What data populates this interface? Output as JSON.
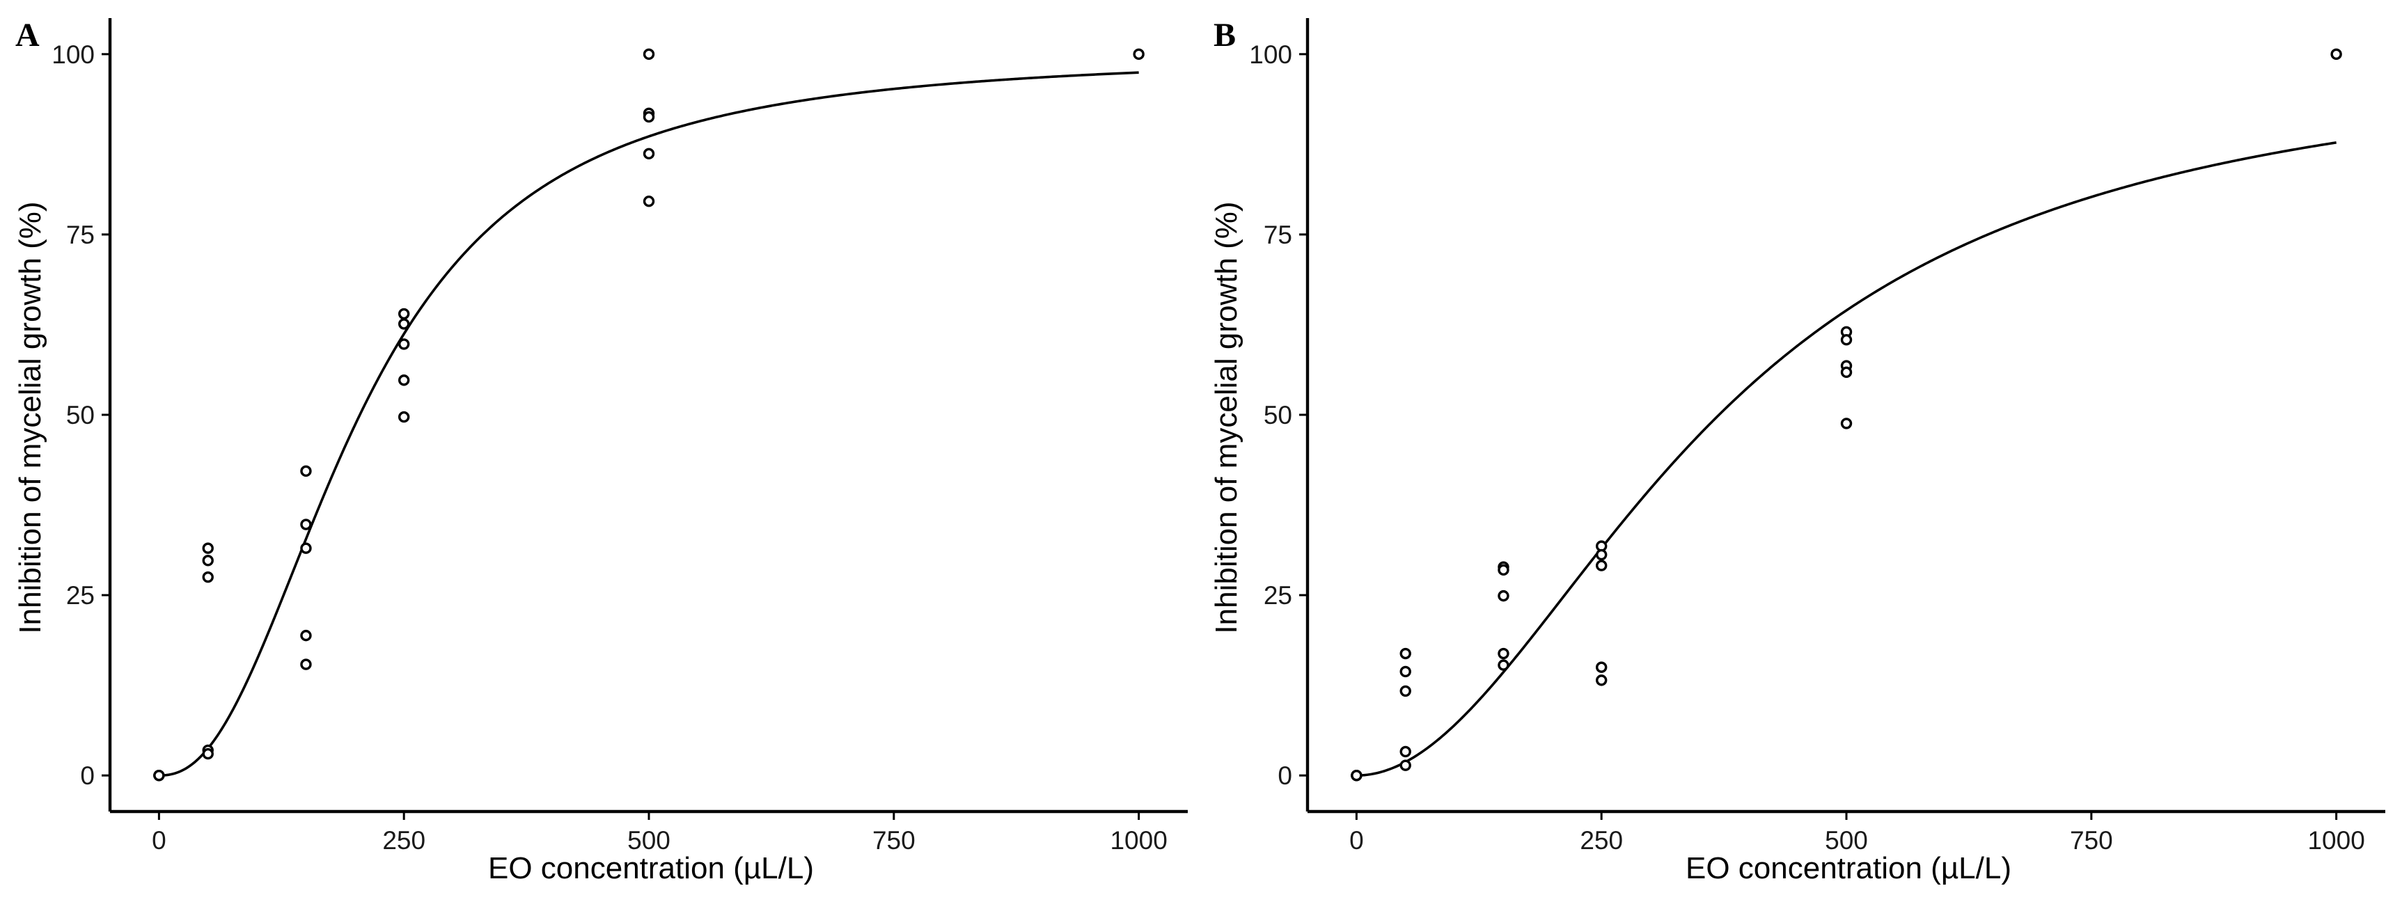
{
  "chart_data": [
    {
      "type": "scatter",
      "panel_label": "A",
      "xlabel": "EO concentration (µL/L)",
      "ylabel": "Inhibition of mycelial growth (%)",
      "xlim": [
        -50,
        1050
      ],
      "ylim": [
        -5,
        105
      ],
      "xticks": [
        0,
        250,
        500,
        750,
        1000
      ],
      "yticks": [
        0,
        25,
        50,
        75,
        100
      ],
      "xtick_labels": [
        "0",
        "250",
        "500",
        "750",
        "1000"
      ],
      "ytick_labels": [
        "0",
        "25",
        "50",
        "75",
        "100"
      ],
      "points": [
        [
          0,
          0
        ],
        [
          0,
          0
        ],
        [
          0,
          0
        ],
        [
          50,
          31.5
        ],
        [
          50,
          29.8
        ],
        [
          50,
          27.5
        ],
        [
          50,
          3.5
        ],
        [
          50,
          3.0
        ],
        [
          150,
          42.2
        ],
        [
          150,
          34.8
        ],
        [
          150,
          31.5
        ],
        [
          150,
          19.4
        ],
        [
          150,
          15.4
        ],
        [
          250,
          64.0
        ],
        [
          250,
          62.6
        ],
        [
          250,
          59.8
        ],
        [
          250,
          54.8
        ],
        [
          250,
          49.7
        ],
        [
          500,
          100
        ],
        [
          500,
          91.8
        ],
        [
          500,
          91.3
        ],
        [
          500,
          86.2
        ],
        [
          500,
          79.6
        ],
        [
          1000,
          100
        ]
      ],
      "fit": {
        "model": "log-logistic",
        "ec50": 205,
        "slope": 2.3,
        "upper": 100,
        "x_range": [
          0,
          1000
        ]
      }
    },
    {
      "type": "scatter",
      "panel_label": "B",
      "xlabel": "EO concentration (µL/L)",
      "ylabel": "Inhibition of mycelial growth (%)",
      "xlim": [
        -50,
        1050
      ],
      "ylim": [
        -5,
        105
      ],
      "xticks": [
        0,
        250,
        500,
        750,
        1000
      ],
      "yticks": [
        0,
        25,
        50,
        75,
        100
      ],
      "xtick_labels": [
        "0",
        "250",
        "500",
        "750",
        "1000"
      ],
      "ytick_labels": [
        "0",
        "25",
        "50",
        "75",
        "100"
      ],
      "points": [
        [
          0,
          0
        ],
        [
          0,
          0
        ],
        [
          0,
          0
        ],
        [
          50,
          16.9
        ],
        [
          50,
          14.4
        ],
        [
          50,
          11.7
        ],
        [
          50,
          3.3
        ],
        [
          50,
          1.4
        ],
        [
          150,
          28.9
        ],
        [
          150,
          28.5
        ],
        [
          150,
          24.9
        ],
        [
          150,
          16.9
        ],
        [
          150,
          15.3
        ],
        [
          250,
          31.8
        ],
        [
          250,
          30.6
        ],
        [
          250,
          29.1
        ],
        [
          250,
          15.0
        ],
        [
          250,
          13.2
        ],
        [
          500,
          61.5
        ],
        [
          500,
          60.4
        ],
        [
          500,
          56.8
        ],
        [
          500,
          55.9
        ],
        [
          500,
          48.8
        ],
        [
          1000,
          100
        ]
      ],
      "fit": {
        "model": "log-logistic",
        "ec50": 370,
        "slope": 1.98,
        "upper": 100,
        "x_range": [
          0,
          1000
        ]
      }
    }
  ]
}
